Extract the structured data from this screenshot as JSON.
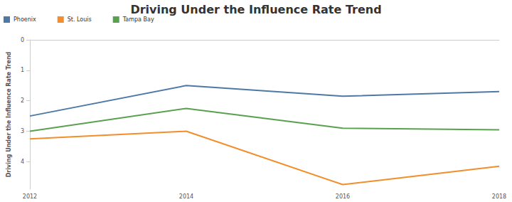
{
  "chart_data": {
    "type": "line",
    "title": "Driving Under the Influence Rate Trend",
    "y_label": "Driving Under the Influence Rate Trend",
    "categories": [
      "2012",
      "2014",
      "2016",
      "2018"
    ],
    "series": [
      {
        "name": "Phoenix",
        "color": "#4e79a7",
        "values": [
          2.5,
          1.5,
          1.85,
          1.7
        ]
      },
      {
        "name": "St. Louis",
        "color": "#f28e2b",
        "values": [
          3.25,
          3.0,
          4.75,
          4.15
        ]
      },
      {
        "name": "Tampa Bay",
        "color": "#59a14f",
        "values": [
          3.0,
          2.25,
          2.9,
          2.95
        ]
      }
    ],
    "ylim": [
      0,
      4.9
    ],
    "yticks": [
      0,
      1,
      2,
      3,
      4
    ],
    "grid": false,
    "legend": "top-left"
  }
}
